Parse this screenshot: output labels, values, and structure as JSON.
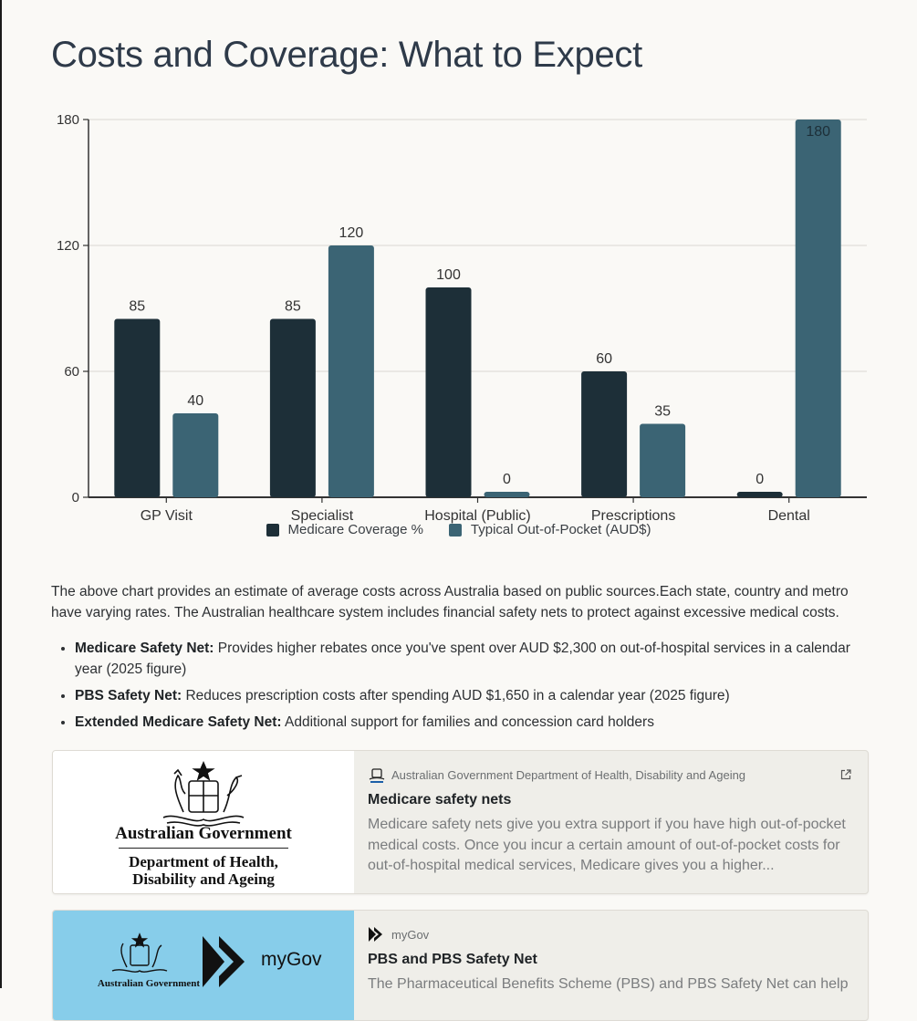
{
  "page": {
    "title": "Costs and Coverage: What to Expect"
  },
  "chart_data": {
    "type": "bar",
    "categories": [
      "GP Visit",
      "Specialist",
      "Hospital (Public)",
      "Prescriptions",
      "Dental"
    ],
    "series": [
      {
        "name": "Medicare Coverage %",
        "values": [
          85,
          85,
          100,
          60,
          0
        ],
        "color": "#1d2f38"
      },
      {
        "name": "Typical Out-of-Pocket (AUD$)",
        "values": [
          40,
          120,
          0,
          35,
          180
        ],
        "color": "#3b6474"
      }
    ],
    "yticks": [
      0,
      60,
      120,
      180
    ],
    "ylim": [
      0,
      180
    ],
    "grid": true,
    "legend": "bottom"
  },
  "intro_text": " The above chart provides an estimate of average costs across Australia based on public sources.Each state, country and metro have varying rates. The Australian healthcare system includes financial safety nets to protect against excessive medical costs.",
  "bullets": [
    {
      "label": "Medicare Safety Net:",
      "text": " Provides higher rebates once you've spent over AUD $2,300 on out-of-hospital services in a calendar year (2025 figure)"
    },
    {
      "label": "PBS Safety Net:",
      "text": " Reduces prescription costs after spending AUD $1,650 in a calendar year (2025 figure)"
    },
    {
      "label": "Extended Medicare Safety Net:",
      "text": " Additional support for families and concession card holders"
    }
  ],
  "cards": [
    {
      "source": "Australian Government Department of Health, Disability and Ageing",
      "title": "Medicare safety nets",
      "description": "Medicare safety nets give you extra support if you have high out-of-pocket medical costs. Once you incur a certain amount of out-of-pocket costs for out-of-hospital medical services, Medicare gives you a higher...",
      "thumb_lines": [
        "Australian Government",
        "Department of Health,",
        "Disability and Ageing"
      ],
      "icon": "coat-of-arms-icon"
    },
    {
      "source": "myGov",
      "title": "PBS and PBS Safety Net",
      "description": "The Pharmaceutical Benefits Scheme (PBS) and PBS Safety Net can help",
      "thumb_lines": [
        "Australian Government",
        "myGov"
      ],
      "icon": "mygov-icon"
    }
  ]
}
